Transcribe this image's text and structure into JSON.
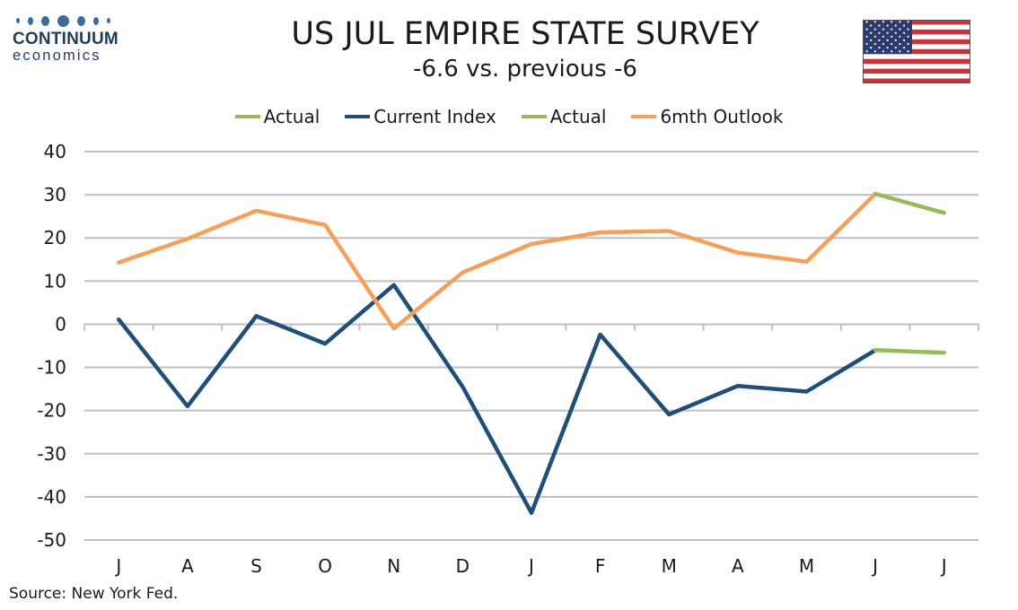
{
  "header": {
    "logo_name": "CONTINUUM",
    "logo_sub": "economics",
    "title": "US JUL EMPIRE STATE SURVEY",
    "subtitle": "-6.6 vs. previous -6"
  },
  "footer": {
    "source": "Source: New York Fed."
  },
  "colors": {
    "current": "#1f4e79",
    "outlook": "#f4a05a",
    "actual": "#93bb5a",
    "grid": "#bfbfbf"
  },
  "chart_data": {
    "type": "line",
    "categories": [
      "J",
      "A",
      "S",
      "O",
      "N",
      "D",
      "J",
      "F",
      "M",
      "A",
      "M",
      "J",
      "J"
    ],
    "ylim": [
      -50,
      40
    ],
    "yticks": [
      40,
      30,
      20,
      10,
      0,
      -10,
      -20,
      -30,
      -40,
      -50
    ],
    "ytick_labels": [
      "40",
      "30",
      "20",
      "10",
      "0",
      "-10",
      "-20",
      "-30",
      "-40",
      "-50"
    ],
    "grid": true,
    "legend": [
      {
        "name": "Actual",
        "color": "#93bb5a"
      },
      {
        "name": "Current Index",
        "color": "#1f4e79"
      },
      {
        "name": "Actual",
        "color": "#93bb5a"
      },
      {
        "name": "6mth Outlook",
        "color": "#f4a05a"
      }
    ],
    "series": [
      {
        "name": "Current Index",
        "color": "#1f4e79",
        "values": [
          1.1,
          -19.0,
          1.9,
          -4.5,
          9.1,
          -14.5,
          -43.7,
          -2.4,
          -20.9,
          -14.3,
          -15.6,
          -6.0,
          null
        ]
      },
      {
        "name": "6mth Outlook",
        "color": "#f4a05a",
        "values": [
          14.3,
          19.8,
          26.3,
          23.0,
          -1.0,
          12.0,
          18.6,
          21.3,
          21.6,
          16.6,
          14.5,
          30.2,
          null
        ]
      },
      {
        "name": "Actual",
        "color": "#93bb5a",
        "values": [
          null,
          null,
          null,
          null,
          null,
          null,
          null,
          null,
          null,
          null,
          null,
          -6.0,
          -6.6
        ]
      },
      {
        "name": "Actual",
        "color": "#93bb5a",
        "values": [
          null,
          null,
          null,
          null,
          null,
          null,
          null,
          null,
          null,
          null,
          null,
          30.2,
          25.8
        ]
      }
    ]
  }
}
